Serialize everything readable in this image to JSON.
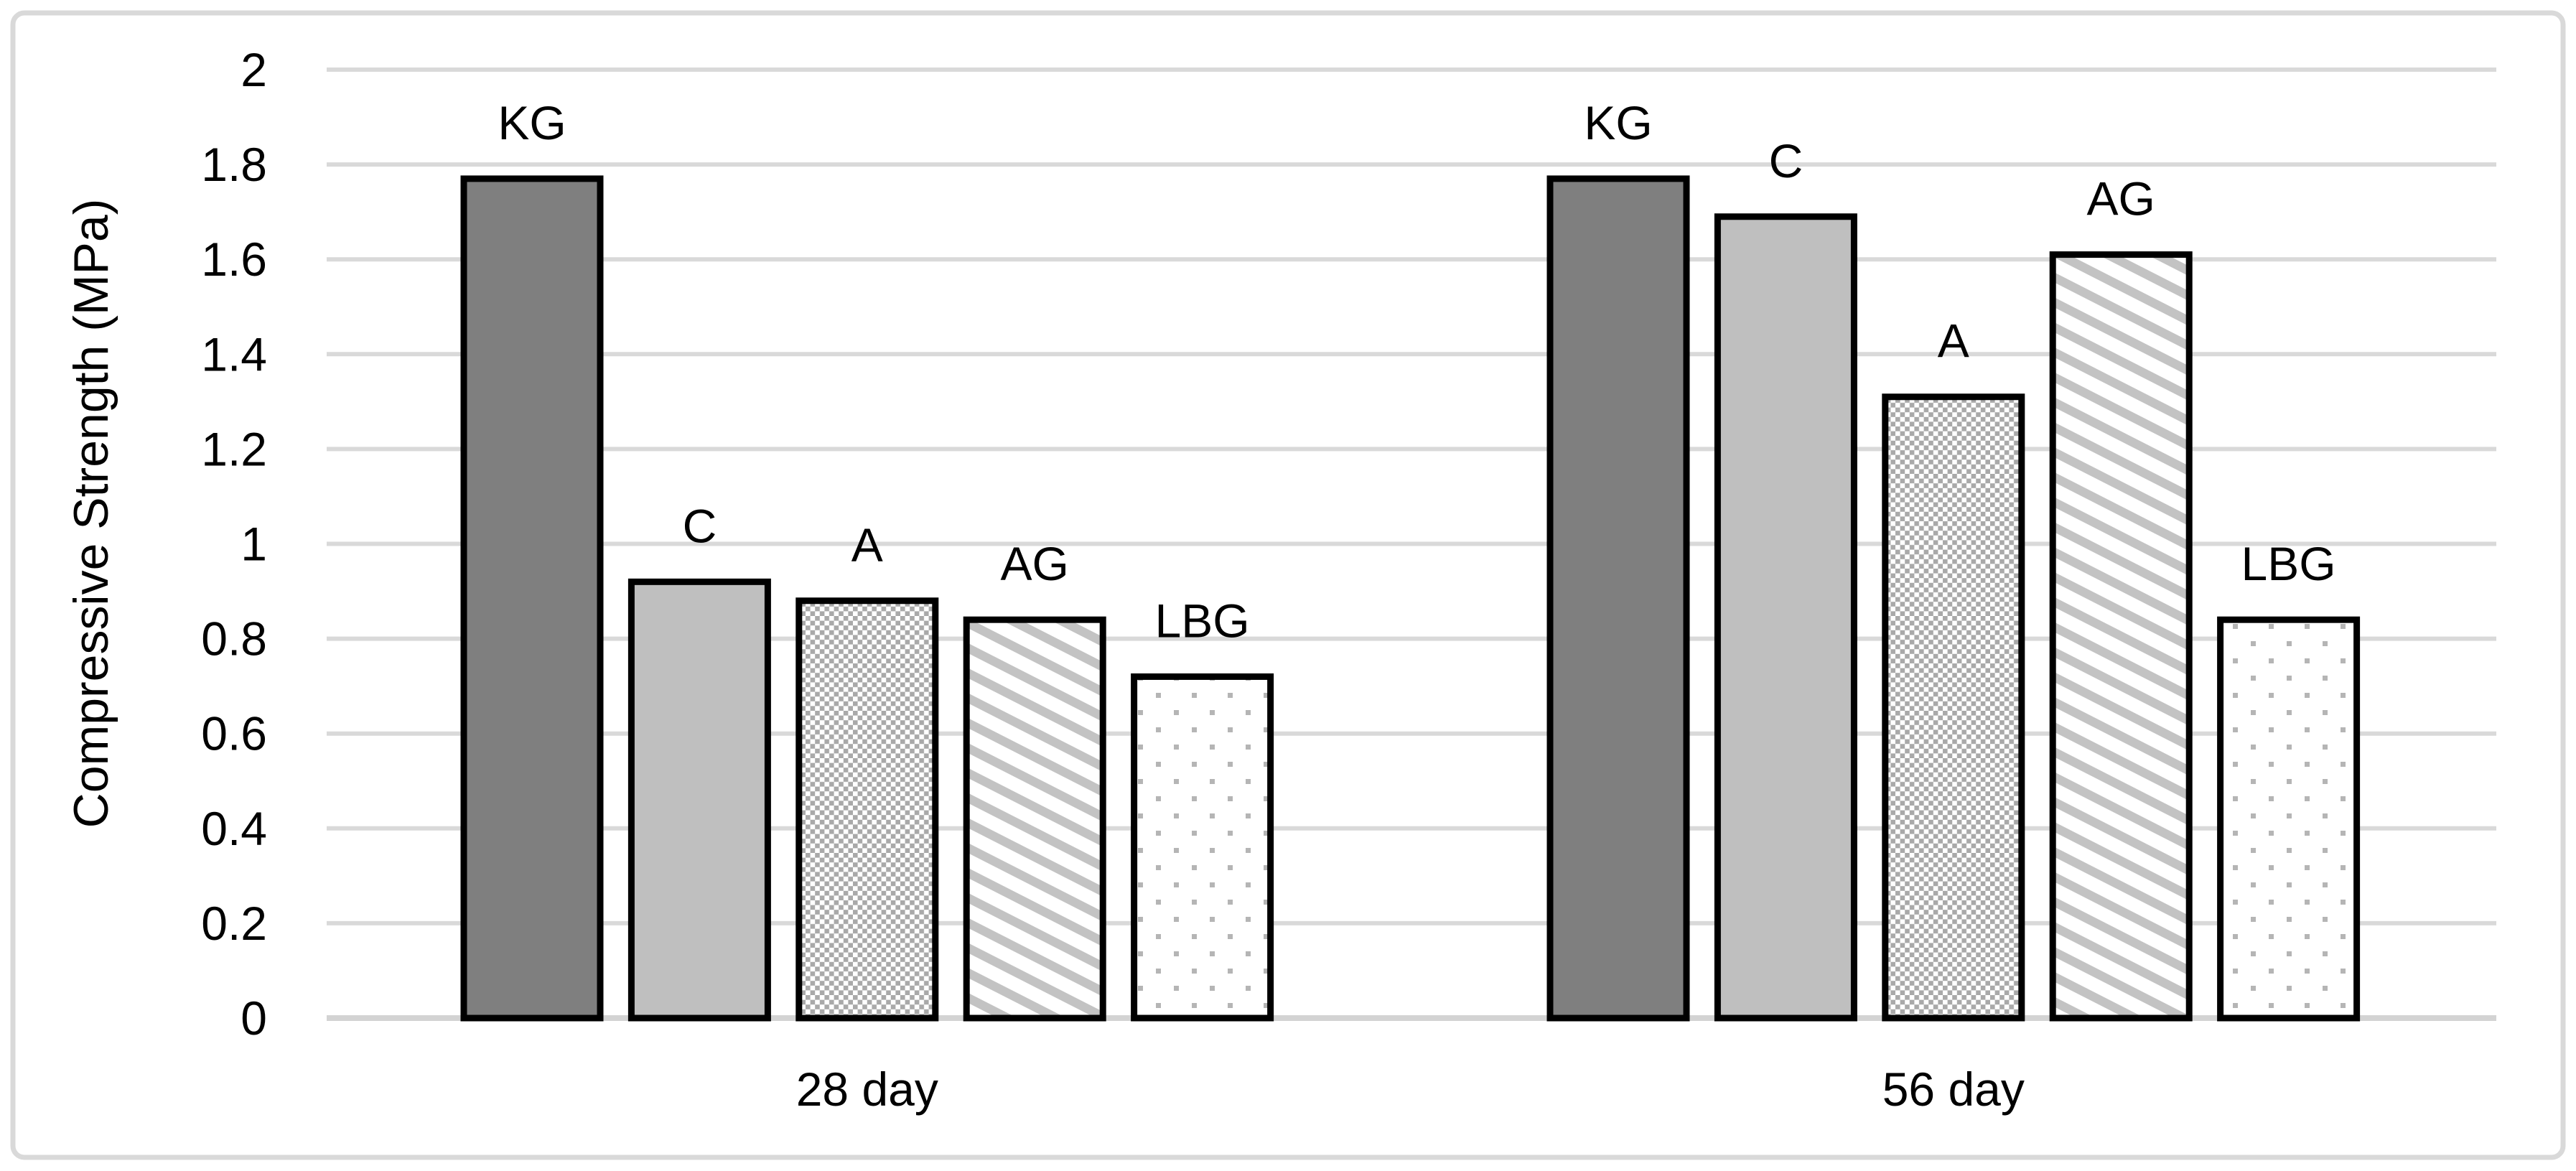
{
  "colors": {
    "background": "#ffffff",
    "figure_border": "#d9d9d9",
    "gridline": "#d9d9d9",
    "axis_line": "#d3d3d3",
    "bar_border": "#000000",
    "text": "#000000",
    "kg_fill": "#7f7f7f",
    "c_fill": "#bfbfbf",
    "checker_gray": "#a9a9a9",
    "stripe_gray": "#c3c3c3",
    "dot_gray": "#b5b5b5"
  },
  "chart_data": {
    "type": "bar",
    "ylabel": "Compressive Strength (MPa)",
    "xlabel": "",
    "ylim": [
      0,
      2
    ],
    "ytick_step": 0.2,
    "ytick_labels": [
      "2",
      "1.8",
      "1.6",
      "1.4",
      "1.2",
      "1",
      "0.8",
      "0.6",
      "0.4",
      "0.2",
      "0"
    ],
    "grid": true,
    "legend_position": "none",
    "bar_labels": "series name shown above each bar",
    "categories": [
      "28 day",
      "56 day"
    ],
    "series": [
      {
        "name": "KG",
        "pattern": "solid",
        "fill": "#7f7f7f",
        "values": [
          1.77,
          1.77
        ]
      },
      {
        "name": "C",
        "pattern": "solid",
        "fill": "#bfbfbf",
        "values": [
          0.92,
          1.69
        ]
      },
      {
        "name": "A",
        "pattern": "checker",
        "fill": "#a9a9a9",
        "values": [
          0.88,
          1.31
        ]
      },
      {
        "name": "AG",
        "pattern": "diag",
        "fill": "#c3c3c3",
        "values": [
          0.84,
          1.61
        ]
      },
      {
        "name": "LBG",
        "pattern": "dots",
        "fill": "#b5b5b5",
        "values": [
          0.72,
          0.84
        ]
      }
    ]
  }
}
